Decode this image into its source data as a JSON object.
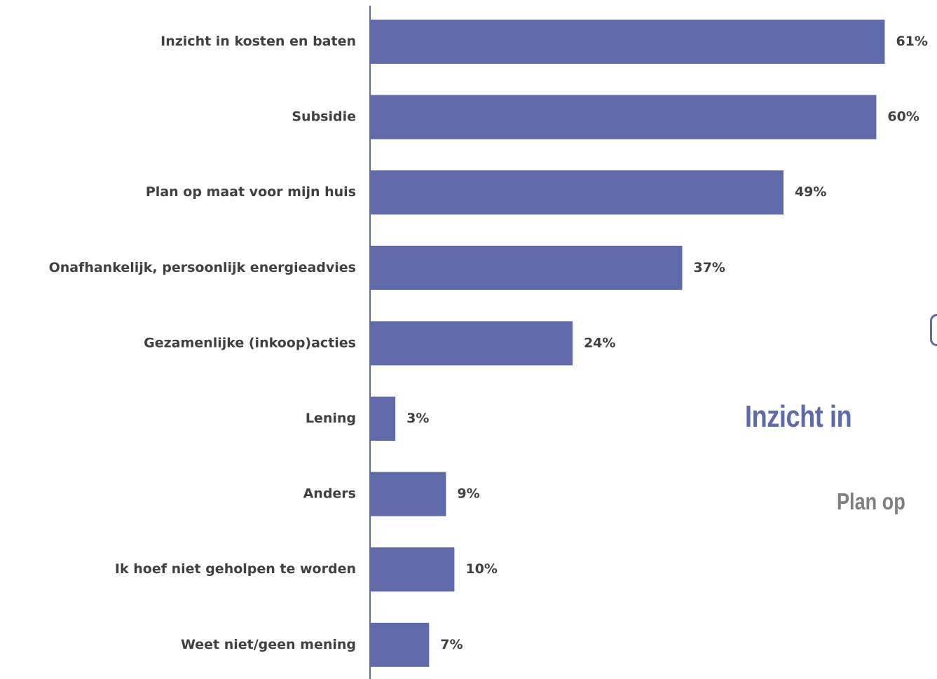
{
  "chart_data": {
    "type": "bar",
    "orientation": "horizontal",
    "categories": [
      "Inzicht in kosten en baten",
      "Subsidie",
      "Plan op maat voor mijn huis",
      "Onafhankelijk, persoonlijk energieadvies",
      "Gezamenlijke (inkoop)acties",
      "Lening",
      "Anders",
      "Ik hoef niet geholpen te worden",
      "Weet niet/geen mening"
    ],
    "values": [
      61,
      60,
      49,
      37,
      24,
      3,
      9,
      10,
      7
    ],
    "value_labels": [
      "61%",
      "60%",
      "49%",
      "37%",
      "24%",
      "3%",
      "9%",
      "10%",
      "7%"
    ],
    "unit": "%",
    "xlim": [
      0,
      100
    ],
    "grid": false,
    "legend": "none",
    "bar_color": "#5f6aab"
  },
  "overlay": {
    "title_fragment": "Inzicht in",
    "subtitle_fragment": "Plan op",
    "accent_color": "#5f6aab",
    "subtitle_color": "#7f7f7f"
  }
}
